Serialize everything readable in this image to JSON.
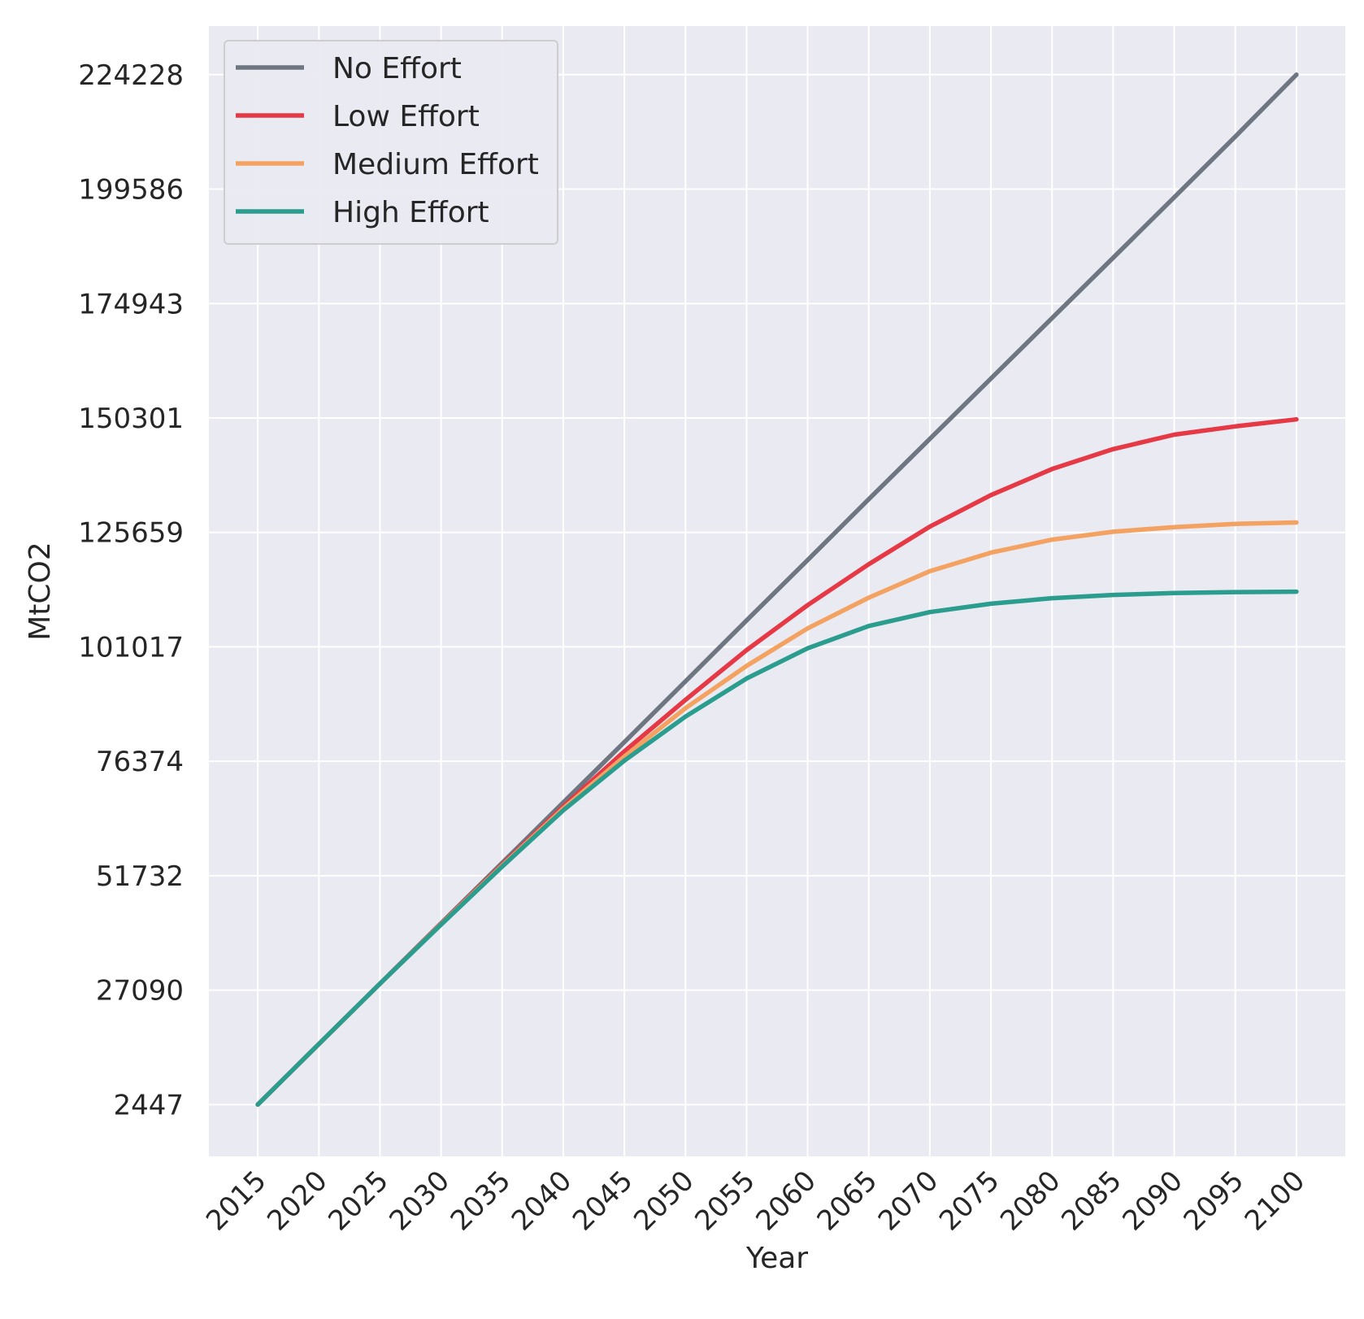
{
  "chart_data": {
    "type": "line",
    "title": "",
    "xlabel": "Year",
    "ylabel": "MtCO2",
    "xlim": [
      2011,
      2104
    ],
    "ylim": [
      -8700,
      234700
    ],
    "grid": true,
    "legend_position": "top-left",
    "x_ticks": [
      2015,
      2020,
      2025,
      2030,
      2035,
      2040,
      2045,
      2050,
      2055,
      2060,
      2065,
      2070,
      2075,
      2080,
      2085,
      2090,
      2095,
      2100
    ],
    "y_ticks": [
      2447,
      27090,
      51732,
      76374,
      101017,
      125659,
      150301,
      174943,
      199586,
      224228
    ],
    "x": [
      2015,
      2020,
      2025,
      2030,
      2035,
      2040,
      2045,
      2050,
      2055,
      2060,
      2065,
      2070,
      2075,
      2080,
      2085,
      2090,
      2095,
      2100
    ],
    "series": [
      {
        "name": "No Effort",
        "color": "#6e7681",
        "values": [
          2447,
          15500,
          28500,
          41500,
          54500,
          67500,
          80500,
          93600,
          106700,
          119700,
          132800,
          145800,
          158800,
          171800,
          184800,
          197800,
          210900,
          224228
        ]
      },
      {
        "name": "Low Effort",
        "color": "#e63946",
        "values": [
          2447,
          15500,
          28500,
          41400,
          54100,
          66600,
          78500,
          89600,
          100300,
          110000,
          118800,
          126900,
          133700,
          139300,
          143600,
          146700,
          148500,
          150000
        ]
      },
      {
        "name": "Medium Effort",
        "color": "#f4a261",
        "values": [
          2447,
          15500,
          28500,
          41300,
          53900,
          66200,
          77400,
          87800,
          96900,
          105000,
          111600,
          117300,
          121300,
          124100,
          125800,
          126800,
          127500,
          127800
        ]
      },
      {
        "name": "High Effort",
        "color": "#2a9d8f",
        "values": [
          2447,
          15500,
          28500,
          41200,
          53700,
          65800,
          76500,
          86000,
          94200,
          100700,
          105500,
          108500,
          110300,
          111500,
          112200,
          112600,
          112800,
          112900
        ]
      }
    ]
  }
}
